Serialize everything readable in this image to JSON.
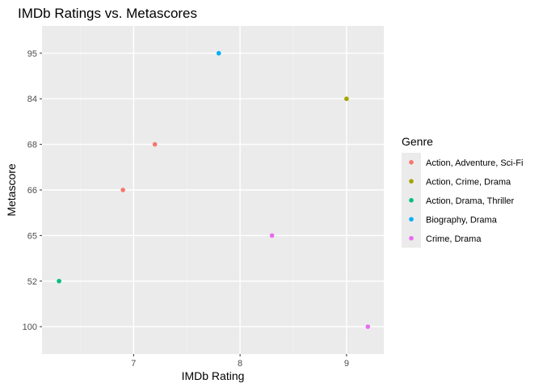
{
  "chart_data": {
    "type": "scatter",
    "title": "IMDb Ratings vs. Metascores",
    "xlabel": "IMDb Rating",
    "ylabel": "Metascore",
    "x_ticks": [
      7,
      8,
      9
    ],
    "x_minor_ticks": [
      6.5,
      7.5,
      8.5
    ],
    "xlim": [
      6.14,
      9.35
    ],
    "y_categories": [
      "100",
      "52",
      "65",
      "66",
      "68",
      "84",
      "95"
    ],
    "grid": true,
    "legend": {
      "title": "Genre",
      "position": "right",
      "entries": [
        {
          "label": "Action, Adventure, Sci-Fi",
          "color": "#F8766D"
        },
        {
          "label": "Action, Crime, Drama",
          "color": "#A3A500"
        },
        {
          "label": "Action, Drama, Thriller",
          "color": "#00BF7D"
        },
        {
          "label": "Biography, Drama",
          "color": "#00B0F6"
        },
        {
          "label": "Crime, Drama",
          "color": "#E76BF3"
        }
      ]
    },
    "points": [
      {
        "x": 7.2,
        "y": "68",
        "genre": "Action, Adventure, Sci-Fi"
      },
      {
        "x": 6.9,
        "y": "66",
        "genre": "Action, Adventure, Sci-Fi"
      },
      {
        "x": 9.0,
        "y": "84",
        "genre": "Action, Crime, Drama"
      },
      {
        "x": 6.3,
        "y": "52",
        "genre": "Action, Drama, Thriller"
      },
      {
        "x": 7.8,
        "y": "95",
        "genre": "Biography, Drama"
      },
      {
        "x": 8.3,
        "y": "65",
        "genre": "Crime, Drama"
      },
      {
        "x": 9.2,
        "y": "100",
        "genre": "Crime, Drama"
      }
    ]
  }
}
